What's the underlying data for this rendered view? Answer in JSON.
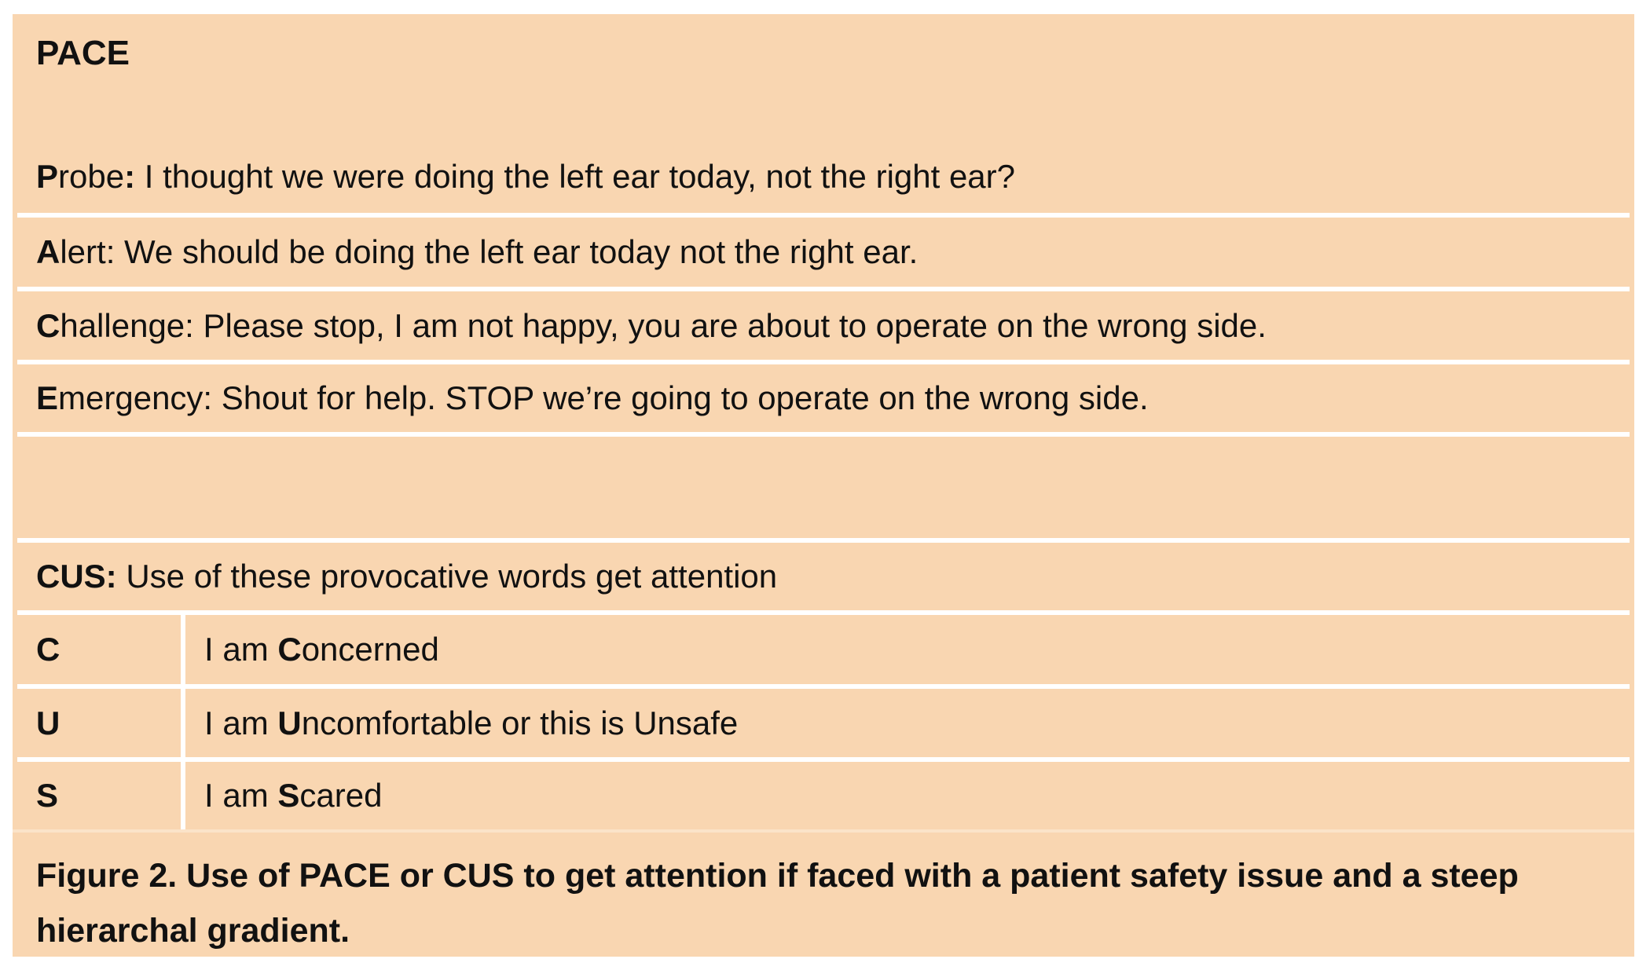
{
  "title": "PACE",
  "pace": [
    {
      "key_letter": "P",
      "key_rest": "robe",
      "colon": ":",
      "text": " I thought we were doing the left ear today, not the right ear?"
    },
    {
      "key_letter": "A",
      "key_rest": "lert",
      "colon": ":",
      "text": " We should be doing the left ear today not the right ear."
    },
    {
      "key_letter": "C",
      "key_rest": "hallenge",
      "colon": ":",
      "text": " Please stop, I am not happy, you are about to operate on the wrong side."
    },
    {
      "key_letter": "E",
      "key_rest": "mergency",
      "colon": ":",
      "text": " Shout for help. STOP we’re going to operate on the wrong side."
    }
  ],
  "cus": {
    "heading": "CUS:",
    "heading_text": " Use of these provocative words get attention",
    "rows": [
      {
        "letter": "C",
        "prefix": "I am ",
        "bold": "C",
        "rest": "oncerned"
      },
      {
        "letter": "U",
        "prefix": "I am ",
        "bold": "U",
        "rest": "ncomfortable or this is Unsafe"
      },
      {
        "letter": "S",
        "prefix": "I am ",
        "bold": "S",
        "rest": "cared"
      }
    ]
  },
  "caption": "Figure 2. Use of PACE or CUS to get attention if faced with a patient safety issue and a steep hierarchal gradient.",
  "colors": {
    "background": "#f9d6b1",
    "separator": "#ffffff",
    "text": "#111111"
  }
}
